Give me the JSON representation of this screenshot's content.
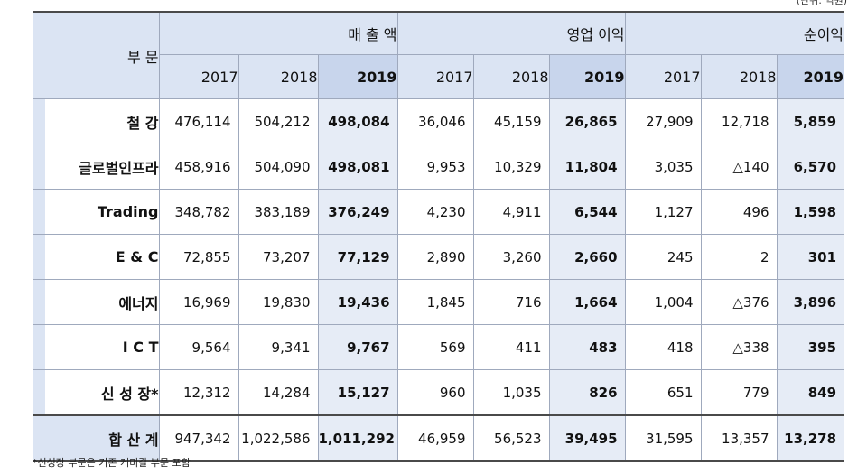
{
  "unit_note": "(단위: 억원)",
  "corner_label": "부 문",
  "groups": [
    "매 출 액",
    "영업 이익",
    "순이익"
  ],
  "years": [
    "2017",
    "2018",
    "2019"
  ],
  "rows": [
    {
      "label": "철  강",
      "sub": false,
      "values": [
        "476,114",
        "504,212",
        "498,084",
        "36,046",
        "45,159",
        "26,865",
        "27,909",
        "12,718",
        "5,859"
      ]
    },
    {
      "label": "글로벌인프라",
      "sub": false,
      "values": [
        "458,916",
        "504,090",
        "498,081",
        "9,953",
        "10,329",
        "11,804",
        "3,035",
        "△140",
        "6,570"
      ]
    },
    {
      "label": "Trading",
      "sub": true,
      "values": [
        "348,782",
        "383,189",
        "376,249",
        "4,230",
        "4,911",
        "6,544",
        "1,127",
        "496",
        "1,598"
      ]
    },
    {
      "label": "E  & C",
      "sub": true,
      "values": [
        "72,855",
        "73,207",
        "77,129",
        "2,890",
        "3,260",
        "2,660",
        "245",
        "2",
        "301"
      ]
    },
    {
      "label": "에너지",
      "sub": true,
      "values": [
        "16,969",
        "19,830",
        "19,436",
        "1,845",
        "716",
        "1,664",
        "1,004",
        "△376",
        "3,896"
      ]
    },
    {
      "label": "I  C  T",
      "sub": true,
      "values": [
        "9,564",
        "9,341",
        "9,767",
        "569",
        "411",
        "483",
        "418",
        "△338",
        "395"
      ]
    },
    {
      "label": "신 성 장*",
      "sub": false,
      "values": [
        "12,312",
        "14,284",
        "15,127",
        "960",
        "1,035",
        "826",
        "651",
        "779",
        "849"
      ]
    }
  ],
  "total": {
    "label": "합 산  계",
    "values": [
      "947,342",
      "1,022,586",
      "1,011,292",
      "46,959",
      "56,523",
      "39,495",
      "31,595",
      "13,357",
      "13,278"
    ]
  },
  "footnote": "*신성장 부문은 기존 케미칼 부문 포함"
}
